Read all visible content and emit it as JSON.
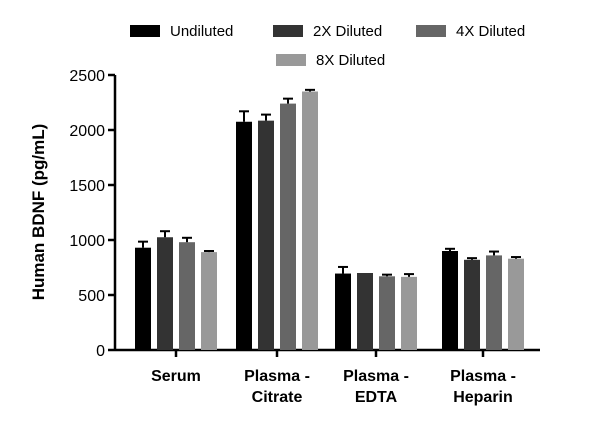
{
  "chart_data": {
    "type": "bar",
    "ylabel": "Human BDNF (pg/mL)",
    "ylim": [
      0,
      2500
    ],
    "yticks": [
      0,
      500,
      1000,
      1500,
      2000,
      2500
    ],
    "categories": [
      [
        "Serum"
      ],
      [
        "Plasma -",
        "Citrate"
      ],
      [
        "Plasma -",
        "EDTA"
      ],
      [
        "Plasma -",
        "Heparin"
      ]
    ],
    "series": [
      {
        "name": "Undiluted",
        "color": "#000000",
        "values": [
          930,
          2075,
          695,
          900
        ],
        "errors": [
          55,
          95,
          60,
          20
        ]
      },
      {
        "name": "2X Diluted",
        "color": "#333333",
        "values": [
          1025,
          2085,
          700,
          820
        ],
        "errors": [
          55,
          55,
          0,
          15
        ]
      },
      {
        "name": "4X Diluted",
        "color": "#666666",
        "values": [
          980,
          2240,
          670,
          860
        ],
        "errors": [
          40,
          45,
          15,
          35
        ]
      },
      {
        "name": "8X Diluted",
        "color": "#999999",
        "values": [
          890,
          2350,
          665,
          830
        ],
        "errors": [
          10,
          15,
          25,
          15
        ]
      }
    ],
    "legend_position": "top",
    "grid": false
  }
}
